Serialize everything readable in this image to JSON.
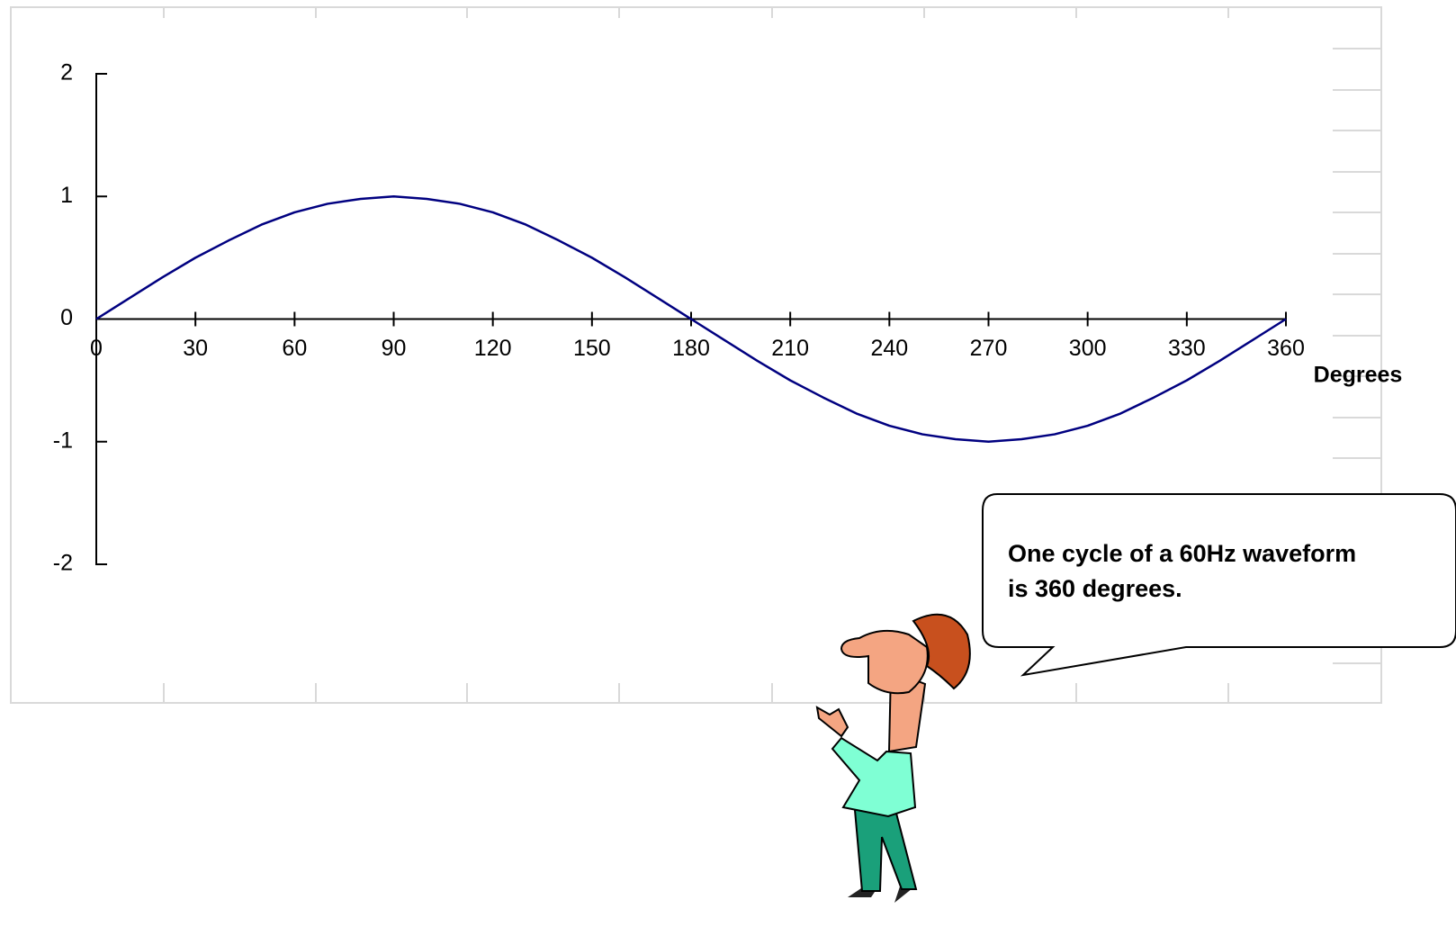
{
  "chart_data": {
    "type": "line",
    "xlabel": "Degrees",
    "annotation": [
      "One cycle of a 60Hz waveform",
      "is 360 degrees."
    ],
    "x": [
      0,
      10,
      20,
      30,
      40,
      50,
      60,
      70,
      80,
      90,
      100,
      110,
      120,
      130,
      140,
      150,
      160,
      170,
      180,
      190,
      200,
      210,
      220,
      230,
      240,
      250,
      260,
      270,
      280,
      290,
      300,
      310,
      320,
      330,
      340,
      350,
      360
    ],
    "values": [
      0,
      0.17,
      0.34,
      0.5,
      0.64,
      0.77,
      0.87,
      0.94,
      0.98,
      1,
      0.98,
      0.94,
      0.87,
      0.77,
      0.64,
      0.5,
      0.34,
      0.17,
      0,
      -0.17,
      -0.34,
      -0.5,
      -0.64,
      -0.77,
      -0.87,
      -0.94,
      -0.98,
      -1,
      -0.98,
      -0.94,
      -0.87,
      -0.77,
      -0.64,
      -0.5,
      -0.34,
      -0.17,
      0
    ],
    "color": "#000080",
    "xlim": [
      0,
      360
    ],
    "xticks": [
      0,
      30,
      60,
      90,
      120,
      150,
      180,
      210,
      240,
      270,
      300,
      330,
      360
    ],
    "ylim": [
      -2,
      2
    ],
    "yticks": [
      -2,
      -1,
      0,
      1,
      2
    ],
    "grid": false
  }
}
